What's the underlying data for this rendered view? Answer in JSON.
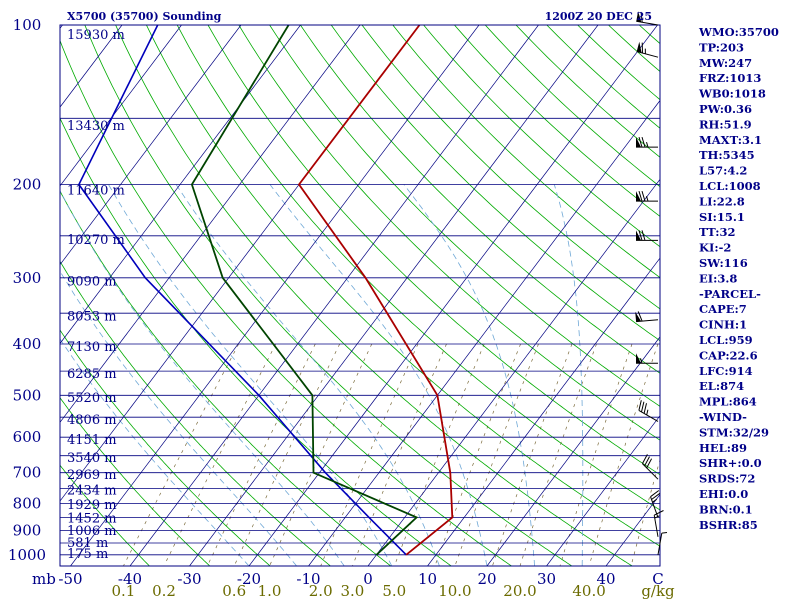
{
  "chart_data": {
    "type": "skew-t",
    "title": "X5700 (35700) Sounding",
    "time": "1200Z 20 DEC 25",
    "colors": {
      "background": "#ffffff",
      "isobar": "#000080",
      "isotherm": "#000080",
      "dry_adiabat": "#00aa00",
      "moist_adiabat": "#6fa8d6",
      "mixing_ratio": "#7a6a3a",
      "temperature": "#aa0000",
      "dewpoint": "#004400",
      "parcel": "#0000bb",
      "text": "#000088",
      "bottom_labels": "#6b6b00"
    },
    "pressure_axis": {
      "label": "mb",
      "ticks": [
        "100",
        "200",
        "300",
        "400",
        "500",
        "600",
        "700",
        "800",
        "900",
        "1000"
      ]
    },
    "temperature_axis": {
      "ticks": [
        "-50",
        "-40",
        "-30",
        "-20",
        "-10",
        "0",
        "10",
        "20",
        "30",
        "40",
        "C"
      ]
    },
    "mixing_ratio_axis": {
      "unit": "g/kg",
      "ticks": [
        "0.1",
        "0.2",
        "0.6",
        "1.0",
        "2.0",
        "3.0",
        "5.0",
        "10.0",
        "20.0",
        "40.0"
      ]
    },
    "height_labels": [
      "15930 m",
      "13430 m",
      "11640 m",
      "10270 m",
      "9090 m",
      "8053 m",
      "7130 m",
      "6285 m",
      "5520 m",
      "4806 m",
      "4151 m",
      "3540 m",
      "2969 m",
      "2434 m",
      "1929 m",
      "1452 m",
      "1006 m",
      "581 m",
      "175 m"
    ],
    "temperature_profile": [
      {
        "p": 1000,
        "t": 5
      },
      {
        "p": 850,
        "t": 8
      },
      {
        "p": 700,
        "t": 2
      },
      {
        "p": 500,
        "t": -10
      },
      {
        "p": 300,
        "t": -37
      },
      {
        "p": 200,
        "t": -60
      },
      {
        "p": 100,
        "t": -60
      }
    ],
    "dewpoint_profile": [
      {
        "p": 1000,
        "t": 0
      },
      {
        "p": 850,
        "t": 2
      },
      {
        "p": 700,
        "t": -21
      },
      {
        "p": 500,
        "t": -31
      },
      {
        "p": 300,
        "t": -61
      },
      {
        "p": 200,
        "t": -78
      },
      {
        "p": 100,
        "t": -82
      }
    ],
    "parcel_profile": [
      {
        "p": 1000,
        "t": 5
      },
      {
        "p": 850,
        "t": -6
      },
      {
        "p": 700,
        "t": -19
      },
      {
        "p": 500,
        "t": -40
      },
      {
        "p": 300,
        "t": -74
      },
      {
        "p": 200,
        "t": -97
      },
      {
        "p": 100,
        "t": -104
      }
    ],
    "wind_barbs": [
      {
        "p": 100,
        "dir": 280,
        "spd": 60
      },
      {
        "p": 115,
        "dir": 285,
        "spd": 65
      },
      {
        "p": 170,
        "dir": 270,
        "spd": 75
      },
      {
        "p": 215,
        "dir": 270,
        "spd": 75
      },
      {
        "p": 255,
        "dir": 270,
        "spd": 70
      },
      {
        "p": 360,
        "dir": 265,
        "spd": 60
      },
      {
        "p": 435,
        "dir": 270,
        "spd": 55
      },
      {
        "p": 560,
        "dir": 300,
        "spd": 35
      },
      {
        "p": 720,
        "dir": 315,
        "spd": 30
      },
      {
        "p": 850,
        "dir": 340,
        "spd": 25
      },
      {
        "p": 925,
        "dir": 350,
        "spd": 15
      },
      {
        "p": 1000,
        "dir": 10,
        "spd": 5
      }
    ]
  },
  "indices": [
    "WMO:35700",
    "TP:203",
    "MW:247",
    "FRZ:1013",
    "WB0:1018",
    "PW:0.36",
    "RH:51.9",
    "MAXT:3.1",
    "TH:5345",
    "L57:4.2",
    "LCL:1008",
    "LI:22.8",
    "SI:15.1",
    "TT:32",
    "KI:-2",
    "SW:116",
    "EI:3.8",
    "-PARCEL-",
    "CAPE:7",
    "CINH:1",
    "LCL:959",
    "CAP:22.6",
    "LFC:914",
    "EL:874",
    "MPL:864",
    "-WIND-",
    "STM:32/29",
    "HEL:89",
    "SHR+:0.0",
    "SRDS:72",
    "EHI:0.0",
    "BRN:0.1",
    "BSHR:85"
  ]
}
